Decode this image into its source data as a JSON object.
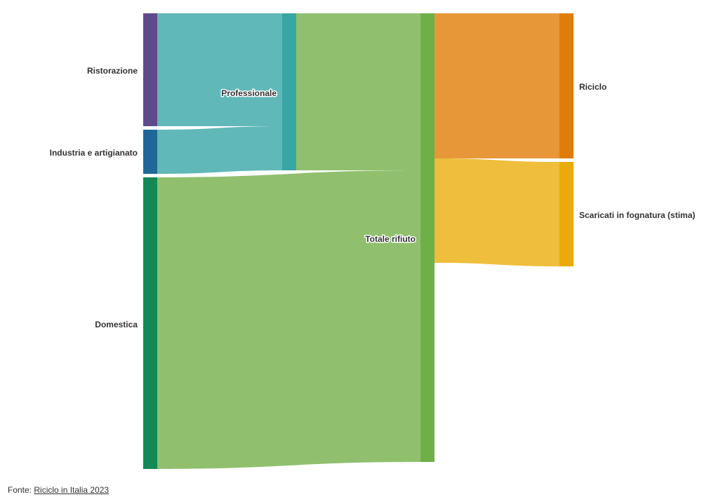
{
  "diagram": {
    "type": "sankey",
    "nodes": {
      "ristorazione": {
        "label": "Ristorazione",
        "color": "#5f4b8b"
      },
      "industria": {
        "label": "Industria e artigianato",
        "color": "#1f6799"
      },
      "domestica": {
        "label": "Domestica",
        "color": "#148856"
      },
      "professionale": {
        "label": "Professionale",
        "color": "#3aa5a5"
      },
      "totale": {
        "label": "Totale rifiuto",
        "color": "#6faf47"
      },
      "riciclo": {
        "label": "Riciclo",
        "color": "#e07c0a"
      },
      "scaricati": {
        "label": "Scaricati in fognatura (stima)",
        "color": "#ebaa0c"
      }
    },
    "flow_colors": {
      "professional_sources": "#61b8b8",
      "total_inputs": "#90c06e",
      "to_riciclo": "#e79738",
      "to_scaricati": "#efbe3c"
    }
  },
  "footer": {
    "prefix": "Fonte: ",
    "link_text": "Riciclo in Italia 2023"
  }
}
